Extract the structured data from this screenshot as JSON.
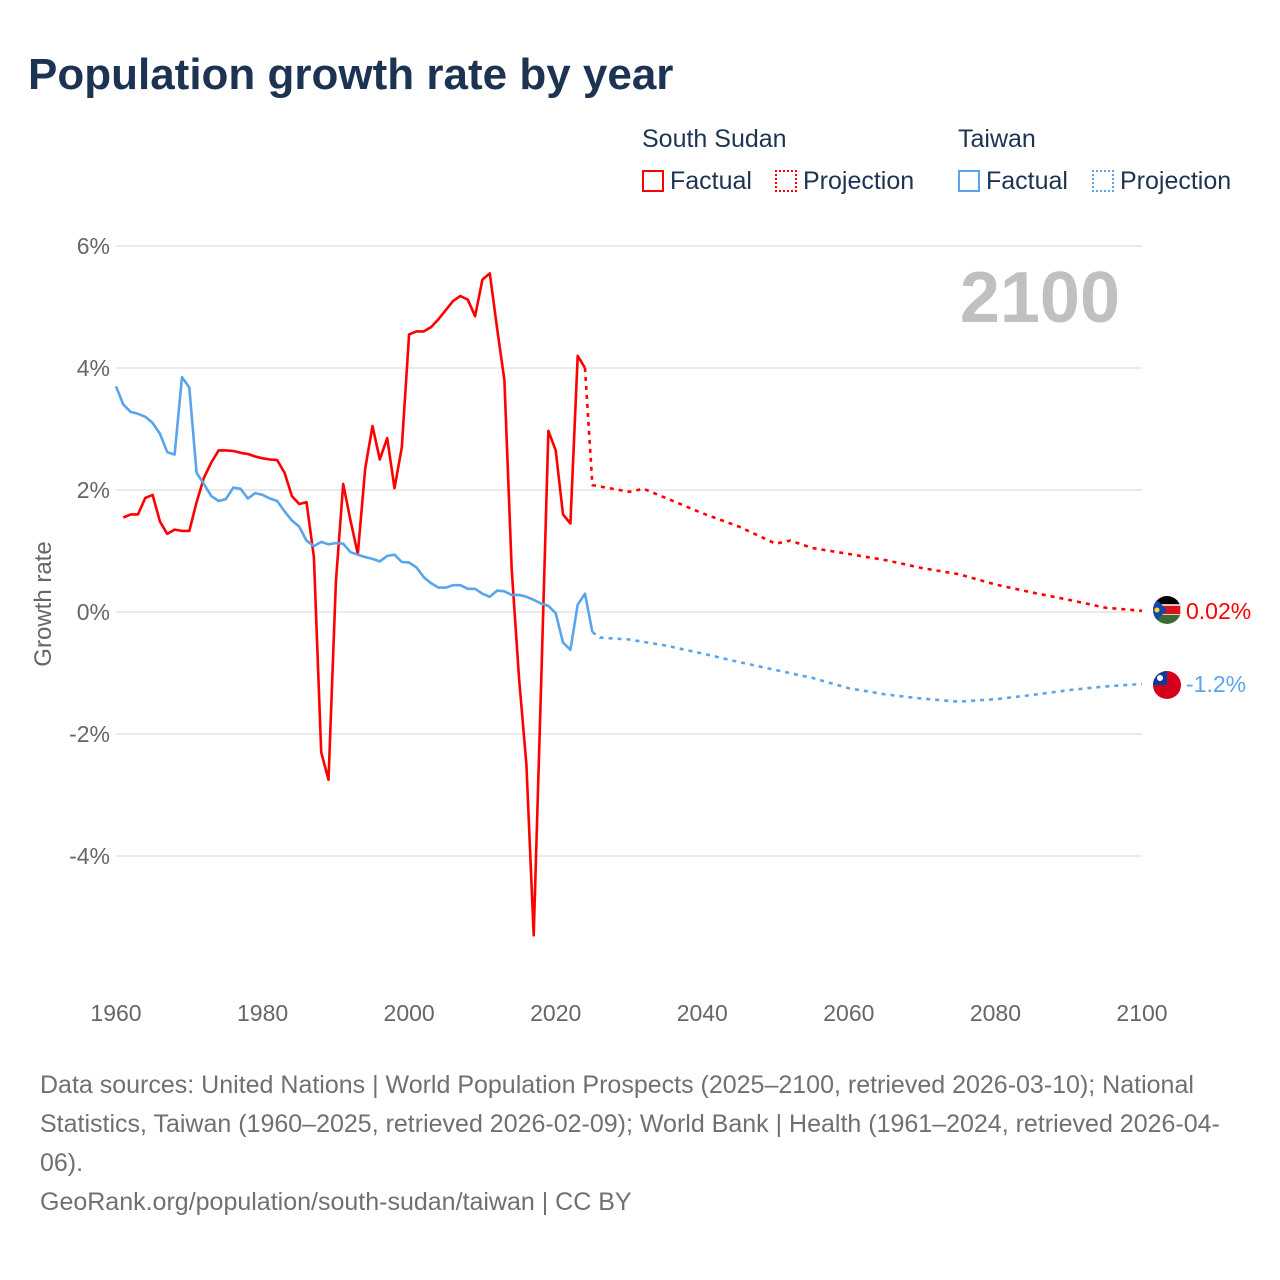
{
  "title": "Population growth rate by year",
  "legend": {
    "groups": [
      {
        "name": "South Sudan",
        "factual": "Factual",
        "projection": "Projection",
        "color": "#ff0000"
      },
      {
        "name": "Taiwan",
        "factual": "Factual",
        "projection": "Projection",
        "color": "#5aa5ea"
      }
    ]
  },
  "footer": {
    "sources": "Data sources: United Nations | World Population Prospects (2025–2100, retrieved 2026-03-10); National Statistics, Taiwan (1960–2025, retrieved 2026-02-09); World Bank | Health (1961–2024, retrieved 2026-04-06).",
    "credit": "GeoRank.org/population/south-sudan/taiwan | CC BY"
  },
  "chart_data": {
    "type": "line",
    "title": "Population growth rate by year",
    "xlabel": "",
    "ylabel": "Growth rate",
    "xlim": [
      1960,
      2100
    ],
    "ylim": [
      -6,
      6
    ],
    "xticks": [
      1960,
      1980,
      2000,
      2020,
      2040,
      2060,
      2080,
      2100
    ],
    "yticks": [
      6,
      4,
      2,
      0,
      -2,
      -4
    ],
    "ytick_labels": [
      "6%",
      "4%",
      "2%",
      "0%",
      "-2%",
      "-4%"
    ],
    "year_label": "2100",
    "grid": true,
    "legend_position": "top-right",
    "series": [
      {
        "name": "South Sudan",
        "kind": "Factual",
        "color": "#ff0000",
        "dashed": false,
        "x": [
          1961,
          1962,
          1963,
          1964,
          1965,
          1966,
          1967,
          1968,
          1969,
          1970,
          1971,
          1972,
          1973,
          1974,
          1975,
          1976,
          1977,
          1978,
          1979,
          1980,
          1981,
          1982,
          1983,
          1984,
          1985,
          1986,
          1987,
          1988,
          1989,
          1990,
          1991,
          1992,
          1993,
          1994,
          1995,
          1996,
          1997,
          1998,
          1999,
          2000,
          2001,
          2002,
          2003,
          2004,
          2005,
          2006,
          2007,
          2008,
          2009,
          2010,
          2011,
          2012,
          2013,
          2014,
          2015,
          2016,
          2017,
          2018,
          2019,
          2020,
          2021,
          2022,
          2023,
          2024
        ],
        "y": [
          1.55,
          1.6,
          1.6,
          1.87,
          1.92,
          1.48,
          1.28,
          1.35,
          1.33,
          1.33,
          1.8,
          2.2,
          2.45,
          2.65,
          2.65,
          2.64,
          2.61,
          2.59,
          2.55,
          2.52,
          2.5,
          2.49,
          2.28,
          1.9,
          1.77,
          1.8,
          0.9,
          -2.3,
          -2.75,
          0.5,
          2.1,
          1.5,
          0.95,
          2.35,
          3.05,
          2.5,
          2.85,
          2.03,
          2.7,
          4.55,
          4.6,
          4.6,
          4.67,
          4.8,
          4.95,
          5.1,
          5.18,
          5.12,
          4.85,
          5.45,
          5.55,
          4.65,
          3.8,
          0.7,
          -1.1,
          -2.5,
          -5.3,
          -1.2,
          2.97,
          2.65,
          1.6,
          1.45,
          4.2,
          4.0
        ]
      },
      {
        "name": "South Sudan",
        "kind": "Projection",
        "color": "#ff0000",
        "dashed": true,
        "x": [
          2024,
          2025,
          2030,
          2032,
          2035,
          2040,
          2045,
          2050,
          2052,
          2055,
          2060,
          2065,
          2070,
          2075,
          2080,
          2085,
          2090,
          2095,
          2100
        ],
        "y": [
          4.0,
          2.08,
          1.97,
          2.02,
          1.87,
          1.62,
          1.4,
          1.12,
          1.17,
          1.05,
          0.95,
          0.85,
          0.72,
          0.62,
          0.45,
          0.32,
          0.2,
          0.07,
          0.02
        ],
        "end_label": "0.02%"
      },
      {
        "name": "Taiwan",
        "kind": "Factual",
        "color": "#5aa5ea",
        "dashed": false,
        "x": [
          1960,
          1961,
          1962,
          1963,
          1964,
          1965,
          1966,
          1967,
          1968,
          1969,
          1970,
          1971,
          1972,
          1973,
          1974,
          1975,
          1976,
          1977,
          1978,
          1979,
          1980,
          1981,
          1982,
          1983,
          1984,
          1985,
          1986,
          1987,
          1988,
          1989,
          1990,
          1991,
          1992,
          1993,
          1994,
          1995,
          1996,
          1997,
          1998,
          1999,
          2000,
          2001,
          2002,
          2003,
          2004,
          2005,
          2006,
          2007,
          2008,
          2009,
          2010,
          2011,
          2012,
          2013,
          2014,
          2015,
          2016,
          2017,
          2018,
          2019,
          2020,
          2021,
          2022,
          2023,
          2024,
          2025
        ],
        "y": [
          3.7,
          3.4,
          3.28,
          3.25,
          3.2,
          3.1,
          2.92,
          2.62,
          2.58,
          3.85,
          3.68,
          2.28,
          2.1,
          1.9,
          1.82,
          1.85,
          2.04,
          2.02,
          1.86,
          1.95,
          1.92,
          1.86,
          1.82,
          1.65,
          1.5,
          1.4,
          1.17,
          1.08,
          1.15,
          1.11,
          1.13,
          1.12,
          0.98,
          0.94,
          0.9,
          0.87,
          0.83,
          0.92,
          0.94,
          0.82,
          0.81,
          0.73,
          0.57,
          0.47,
          0.4,
          0.4,
          0.44,
          0.44,
          0.38,
          0.38,
          0.3,
          0.25,
          0.35,
          0.34,
          0.28,
          0.28,
          0.25,
          0.2,
          0.14,
          0.1,
          -0.02,
          -0.5,
          -0.62,
          0.12,
          0.3,
          -0.33
        ]
      },
      {
        "name": "Taiwan",
        "kind": "Projection",
        "color": "#5aa5ea",
        "dashed": true,
        "x": [
          2025,
          2026,
          2030,
          2035,
          2040,
          2045,
          2050,
          2055,
          2060,
          2065,
          2070,
          2075,
          2080,
          2085,
          2090,
          2095,
          2100
        ],
        "y": [
          -0.33,
          -0.42,
          -0.45,
          -0.55,
          -0.68,
          -0.82,
          -0.95,
          -1.08,
          -1.25,
          -1.35,
          -1.42,
          -1.47,
          -1.43,
          -1.36,
          -1.28,
          -1.22,
          -1.18
        ],
        "end_label": "-1.2%"
      }
    ]
  }
}
